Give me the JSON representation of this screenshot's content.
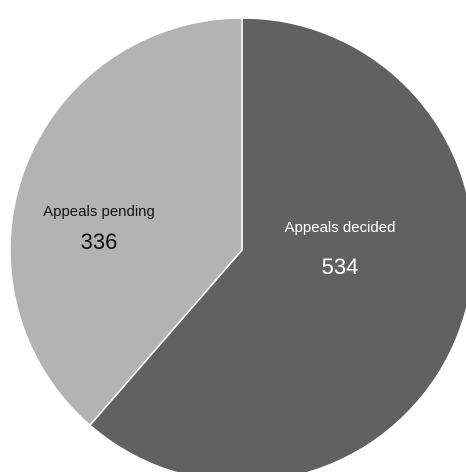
{
  "chart_data": {
    "type": "pie",
    "title": "",
    "slices": [
      {
        "label": "Appeals decided",
        "value": 534,
        "value_text": "534",
        "color": "#616161",
        "text_color": "#ffffff"
      },
      {
        "label": "Appeals pending",
        "value": 336,
        "value_text": "336",
        "color": "#b3b3b3",
        "text_color": "#111111"
      }
    ],
    "start": "12 o'clock",
    "direction": "clockwise",
    "slice_border_color": "#ffffff",
    "legend": "none"
  }
}
